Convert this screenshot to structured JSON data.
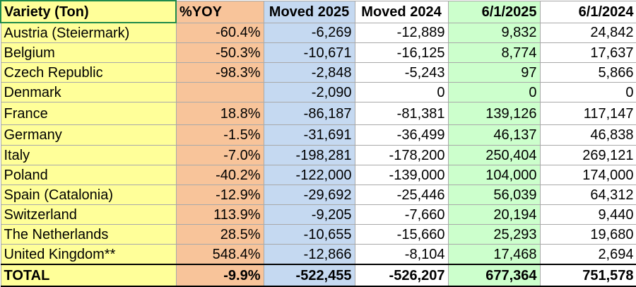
{
  "headers": {
    "variety": "Variety (Ton)",
    "yoy": "%YOY",
    "moved_2025": "Moved 2025",
    "moved_2024": "Moved 2024",
    "date_2025": "6/1/2025",
    "date_2024": "6/1/2024"
  },
  "rows": [
    {
      "variety": "Austria (Steiermark)",
      "yoy": "-60.4%",
      "moved_2025": "-6,269",
      "moved_2024": "-12,889",
      "date_2025": "9,832",
      "date_2024": "24,842"
    },
    {
      "variety": "Belgium",
      "yoy": "-50.3%",
      "moved_2025": "-10,671",
      "moved_2024": "-16,125",
      "date_2025": "8,774",
      "date_2024": "17,637"
    },
    {
      "variety": "Czech Republic",
      "yoy": "-98.3%",
      "moved_2025": "-2,848",
      "moved_2024": "-5,243",
      "date_2025": "97",
      "date_2024": "5,866"
    },
    {
      "variety": "Denmark",
      "yoy": "",
      "moved_2025": "-2,090",
      "moved_2024": "0",
      "date_2025": "0",
      "date_2024": "0"
    },
    {
      "variety": "France",
      "yoy": "18.8%",
      "moved_2025": "-86,187",
      "moved_2024": "-81,381",
      "date_2025": "139,126",
      "date_2024": "117,147"
    },
    {
      "variety": "Germany",
      "yoy": "-1.5%",
      "moved_2025": "-31,691",
      "moved_2024": "-36,499",
      "date_2025": "46,137",
      "date_2024": "46,838"
    },
    {
      "variety": "Italy",
      "yoy": "-7.0%",
      "moved_2025": "-198,281",
      "moved_2024": "-178,200",
      "date_2025": "250,404",
      "date_2024": "269,121"
    },
    {
      "variety": "Poland",
      "yoy": "-40.2%",
      "moved_2025": "-122,000",
      "moved_2024": "-139,000",
      "date_2025": "104,000",
      "date_2024": "174,000"
    },
    {
      "variety": "Spain (Catalonia)",
      "yoy": "-12.9%",
      "moved_2025": "-29,692",
      "moved_2024": "-25,446",
      "date_2025": "56,039",
      "date_2024": "64,312"
    },
    {
      "variety": "Switzerland",
      "yoy": "113.9%",
      "moved_2025": "-9,205",
      "moved_2024": "-7,660",
      "date_2025": "20,194",
      "date_2024": "9,440"
    },
    {
      "variety": "The Netherlands",
      "yoy": "28.5%",
      "moved_2025": "-10,655",
      "moved_2024": "-15,660",
      "date_2025": "25,293",
      "date_2024": "19,680"
    },
    {
      "variety": "United Kingdom**",
      "yoy": "548.4%",
      "moved_2025": "-12,866",
      "moved_2024": "-8,104",
      "date_2025": "17,468",
      "date_2024": "2,694"
    }
  ],
  "total": {
    "label": "TOTAL",
    "yoy": "-9.9%",
    "moved_2025": "-522,455",
    "moved_2024": "-526,207",
    "date_2025": "677,364",
    "date_2024": "751,578"
  },
  "colors": {
    "variety_column": "#ffff99",
    "yoy_column": "#f8c49a",
    "moved_2025_column": "#c5d9f1",
    "date_2025_column": "#ccffcc",
    "selected_cell_border": "#1f8b4c",
    "grid_line": "#a9a9a9"
  }
}
